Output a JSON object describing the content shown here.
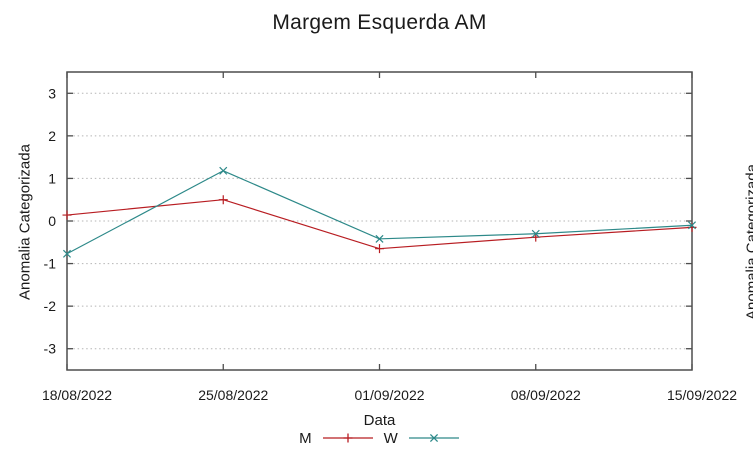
{
  "chart_data": {
    "type": "line",
    "title": "Margem Esquerda AM",
    "xlabel": "Data",
    "ylabel": "Anomalia Categorizada",
    "categories": [
      "18/08/2022",
      "25/08/2022",
      "01/09/2022",
      "08/09/2022",
      "15/09/2022"
    ],
    "series": [
      {
        "name": "M",
        "color": "#b81d22",
        "marker": "plus",
        "values": [
          0.14,
          0.5,
          -0.65,
          -0.38,
          -0.15
        ]
      },
      {
        "name": "W",
        "color": "#2d8989",
        "marker": "cross",
        "values": [
          -0.77,
          1.18,
          -0.42,
          -0.3,
          -0.1
        ]
      }
    ],
    "ylim": [
      -3.5,
      3.5
    ],
    "yticks": [
      3,
      2,
      1,
      0,
      -1,
      -2,
      -3
    ],
    "grid": true,
    "grid_style": "dotted",
    "legend_position": "bottom-center"
  },
  "adjacent_chart": {
    "partial_ylabel": "Anomalia Categorizada"
  },
  "colors": {
    "axis": "#4d4d4d",
    "grid": "#b5b5b5",
    "text": "#1a1a1a"
  }
}
